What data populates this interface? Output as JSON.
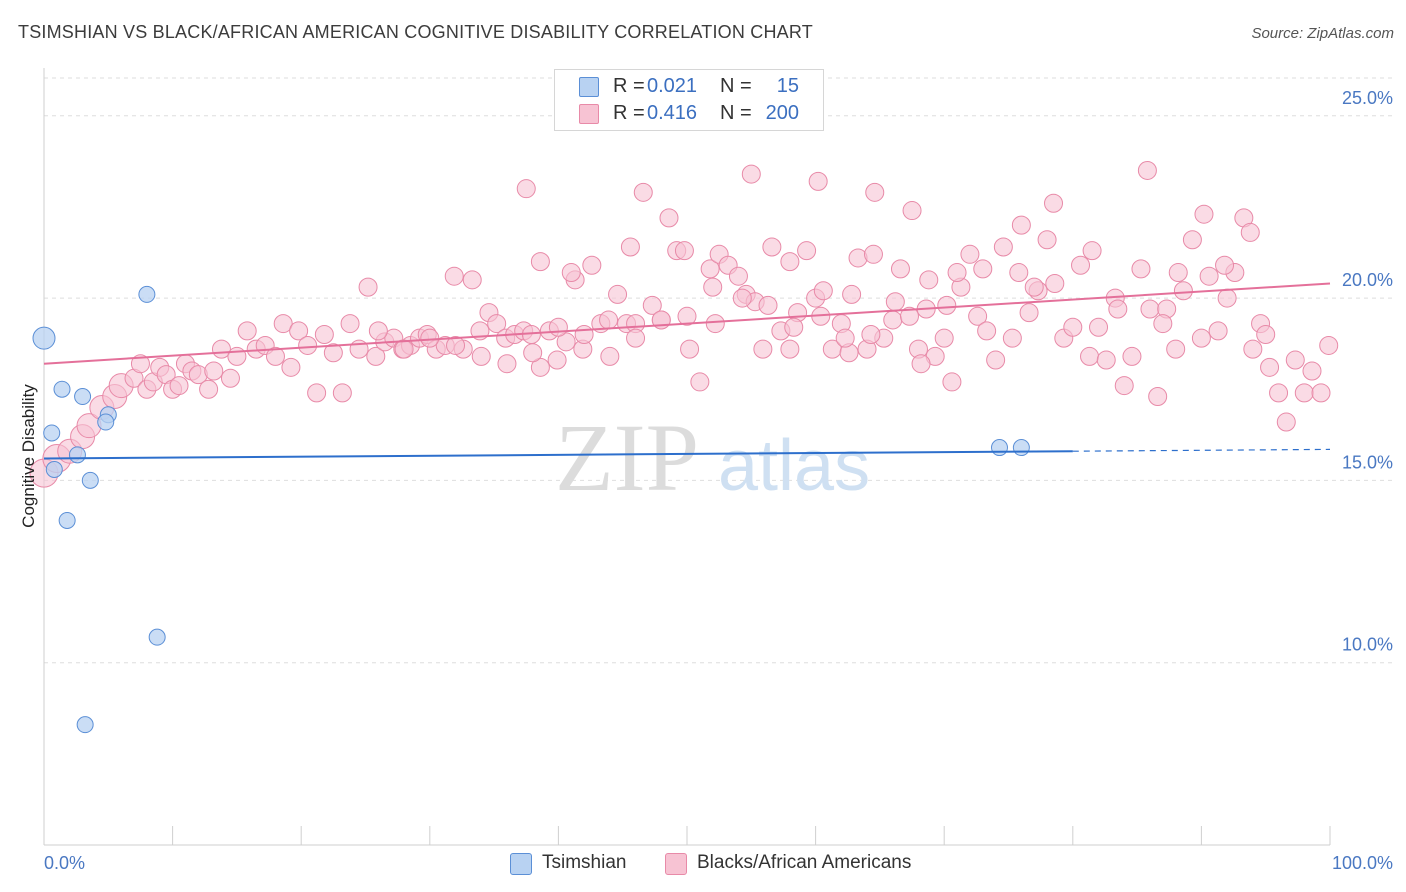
{
  "header": {
    "title": "TSIMSHIAN VS BLACK/AFRICAN AMERICAN COGNITIVE DISABILITY CORRELATION CHART",
    "source": "Source: ZipAtlas.com"
  },
  "legend": {
    "series1": {
      "r_label": "R =",
      "r_value": "0.021",
      "n_label": "N =",
      "n_value": "15"
    },
    "series2": {
      "r_label": "R =",
      "r_value": "0.416",
      "n_label": "N =",
      "n_value": "200"
    }
  },
  "bottom_legend": {
    "series1": "Tsimshian",
    "series2": "Blacks/African Americans"
  },
  "watermark": {
    "zip": "ZIP",
    "atlas": "atlas"
  },
  "colors": {
    "blue_fill": "#b8d2f2",
    "blue_stroke": "#5b8fd6",
    "blue_line": "#2d6fcc",
    "pink_fill": "#f7c3d3",
    "pink_stroke": "#e88aa8",
    "pink_line": "#e4709a",
    "accent_text": "#3b6fc0"
  },
  "chart_data": {
    "type": "scatter",
    "title": "TSIMSHIAN VS BLACK/AFRICAN AMERICAN COGNITIVE DISABILITY CORRELATION CHART",
    "xlabel": "",
    "ylabel": "Cognitive Disability",
    "xlim": [
      0,
      100
    ],
    "ylim": [
      5,
      26.2
    ],
    "x_tick_labels": [
      "0.0%",
      "100.0%"
    ],
    "y_ticks": [
      10,
      15,
      20,
      25
    ],
    "y_tick_labels": [
      "10.0%",
      "15.0%",
      "20.0%",
      "25.0%"
    ],
    "grid": true,
    "legend_position": "top-center",
    "series": [
      {
        "name": "Tsimshian",
        "r": 0.021,
        "n": 15,
        "trend": {
          "x0": 0,
          "y0": 15.6,
          "x1": 80,
          "y1": 15.8,
          "dash_to": 100,
          "dash_y": 15.85
        },
        "points": [
          [
            0.0,
            18.9,
            3
          ],
          [
            0.6,
            16.3,
            1
          ],
          [
            1.4,
            17.5,
            1
          ],
          [
            3.0,
            17.3,
            1
          ],
          [
            5.0,
            16.8,
            1
          ],
          [
            4.8,
            16.6,
            1
          ],
          [
            0.8,
            15.3,
            1
          ],
          [
            2.6,
            15.7,
            1
          ],
          [
            3.6,
            15.0,
            1
          ],
          [
            1.8,
            13.9,
            1
          ],
          [
            8.0,
            20.1,
            1
          ],
          [
            8.8,
            10.7,
            1
          ],
          [
            3.2,
            8.3,
            1
          ],
          [
            74.3,
            15.9,
            1
          ],
          [
            76.0,
            15.9,
            1
          ]
        ]
      },
      {
        "name": "Blacks/African Americans",
        "r": 0.416,
        "n": 200,
        "trend": {
          "x0": 0,
          "y0": 18.2,
          "x1": 100,
          "y1": 20.4
        },
        "points": [
          [
            0.0,
            15.2,
            3
          ],
          [
            1.0,
            15.6,
            3
          ],
          [
            2.0,
            15.8,
            2
          ],
          [
            3.0,
            16.2,
            2
          ],
          [
            3.5,
            16.5,
            2
          ],
          [
            4.5,
            17.0,
            2
          ],
          [
            5.5,
            17.3,
            2
          ],
          [
            6.0,
            17.6,
            2
          ],
          [
            7.0,
            17.8,
            1
          ],
          [
            7.5,
            18.2,
            1
          ],
          [
            8.0,
            17.5,
            1
          ],
          [
            8.5,
            17.7,
            1
          ],
          [
            9.0,
            18.1,
            1
          ],
          [
            9.5,
            17.9,
            1
          ],
          [
            10.0,
            17.5,
            1
          ],
          [
            10.5,
            17.6,
            1
          ],
          [
            11.0,
            18.2,
            1
          ],
          [
            11.5,
            18.0,
            1
          ],
          [
            12.0,
            17.9,
            1
          ],
          [
            12.8,
            17.5,
            1
          ],
          [
            13.2,
            18.0,
            1
          ],
          [
            13.8,
            18.6,
            1
          ],
          [
            14.5,
            17.8,
            1
          ],
          [
            15.0,
            18.4,
            1
          ],
          [
            15.8,
            19.1,
            1
          ],
          [
            16.5,
            18.6,
            1
          ],
          [
            17.2,
            18.7,
            1
          ],
          [
            18.0,
            18.4,
            1
          ],
          [
            18.6,
            19.3,
            1
          ],
          [
            19.2,
            18.1,
            1
          ],
          [
            19.8,
            19.1,
            1
          ],
          [
            20.5,
            18.7,
            1
          ],
          [
            21.2,
            17.4,
            1
          ],
          [
            21.8,
            19.0,
            1
          ],
          [
            22.5,
            18.5,
            1
          ],
          [
            23.2,
            17.4,
            1
          ],
          [
            23.8,
            19.3,
            1
          ],
          [
            24.5,
            18.6,
            1
          ],
          [
            25.2,
            20.3,
            1
          ],
          [
            25.8,
            18.4,
            1
          ],
          [
            26.5,
            18.8,
            1
          ],
          [
            27.2,
            18.9,
            1
          ],
          [
            27.9,
            18.6,
            1
          ],
          [
            28.5,
            18.7,
            1
          ],
          [
            29.2,
            18.9,
            1
          ],
          [
            29.8,
            19.0,
            1
          ],
          [
            30.5,
            18.6,
            1
          ],
          [
            31.2,
            18.7,
            1
          ],
          [
            31.9,
            20.6,
            1
          ],
          [
            32.6,
            18.6,
            1
          ],
          [
            33.3,
            20.5,
            1
          ],
          [
            33.9,
            19.1,
            1
          ],
          [
            34.6,
            19.6,
            1
          ],
          [
            35.2,
            19.3,
            1
          ],
          [
            35.9,
            18.9,
            1
          ],
          [
            36.6,
            19.0,
            1
          ],
          [
            37.3,
            19.1,
            1
          ],
          [
            37.9,
            19.0,
            1
          ],
          [
            38.6,
            18.1,
            1
          ],
          [
            39.3,
            19.1,
            1
          ],
          [
            39.9,
            18.3,
            1
          ],
          [
            40.6,
            18.8,
            1
          ],
          [
            41.3,
            20.5,
            1
          ],
          [
            41.9,
            18.6,
            1
          ],
          [
            42.6,
            20.9,
            1
          ],
          [
            43.3,
            19.3,
            1
          ],
          [
            43.9,
            19.4,
            1
          ],
          [
            44.6,
            20.1,
            1
          ],
          [
            45.3,
            19.3,
            1
          ],
          [
            46.0,
            19.3,
            1
          ],
          [
            46.6,
            22.9,
            1
          ],
          [
            47.3,
            19.8,
            1
          ],
          [
            48.0,
            19.4,
            1
          ],
          [
            48.6,
            22.2,
            1
          ],
          [
            49.2,
            21.3,
            1
          ],
          [
            50.2,
            18.6,
            1
          ],
          [
            51.0,
            17.7,
            1
          ],
          [
            51.8,
            20.8,
            1
          ],
          [
            52.5,
            21.2,
            1
          ],
          [
            53.2,
            20.9,
            1
          ],
          [
            54.0,
            20.6,
            1
          ],
          [
            54.6,
            20.1,
            1
          ],
          [
            55.3,
            19.9,
            1
          ],
          [
            55.9,
            18.6,
            1
          ],
          [
            56.6,
            21.4,
            1
          ],
          [
            57.3,
            19.1,
            1
          ],
          [
            58.0,
            18.6,
            1
          ],
          [
            58.6,
            19.6,
            1
          ],
          [
            59.3,
            21.3,
            1
          ],
          [
            60.0,
            20.0,
            1
          ],
          [
            60.6,
            20.2,
            1
          ],
          [
            61.3,
            18.6,
            1
          ],
          [
            62.0,
            19.3,
            1
          ],
          [
            62.6,
            18.5,
            1
          ],
          [
            63.3,
            21.1,
            1
          ],
          [
            64.0,
            18.6,
            1
          ],
          [
            64.6,
            22.9,
            1
          ],
          [
            65.3,
            18.9,
            1
          ],
          [
            66.0,
            19.4,
            1
          ],
          [
            66.6,
            20.8,
            1
          ],
          [
            67.3,
            19.5,
            1
          ],
          [
            68.0,
            18.6,
            1
          ],
          [
            68.6,
            19.7,
            1
          ],
          [
            69.3,
            18.4,
            1
          ],
          [
            70.0,
            18.9,
            1
          ],
          [
            70.6,
            17.7,
            1
          ],
          [
            71.3,
            20.3,
            1
          ],
          [
            72.0,
            21.2,
            1
          ],
          [
            72.6,
            19.5,
            1
          ],
          [
            73.3,
            19.1,
            1
          ],
          [
            74.0,
            18.3,
            1
          ],
          [
            74.6,
            21.4,
            1
          ],
          [
            75.3,
            18.9,
            1
          ],
          [
            76.0,
            22.0,
            1
          ],
          [
            76.6,
            19.6,
            1
          ],
          [
            77.3,
            20.2,
            1
          ],
          [
            78.0,
            21.6,
            1
          ],
          [
            78.6,
            20.4,
            1
          ],
          [
            79.3,
            18.9,
            1
          ],
          [
            80.0,
            19.2,
            1
          ],
          [
            80.6,
            20.9,
            1
          ],
          [
            81.3,
            18.4,
            1
          ],
          [
            82.0,
            19.2,
            1
          ],
          [
            82.6,
            18.3,
            1
          ],
          [
            83.3,
            20.0,
            1
          ],
          [
            84.0,
            17.6,
            1
          ],
          [
            84.6,
            18.4,
            1
          ],
          [
            85.3,
            20.8,
            1
          ],
          [
            86.0,
            19.7,
            1
          ],
          [
            86.6,
            17.3,
            1
          ],
          [
            87.3,
            19.7,
            1
          ],
          [
            88.0,
            18.6,
            1
          ],
          [
            88.6,
            20.2,
            1
          ],
          [
            89.3,
            21.6,
            1
          ],
          [
            90.0,
            18.9,
            1
          ],
          [
            90.6,
            20.6,
            1
          ],
          [
            91.3,
            19.1,
            1
          ],
          [
            92.0,
            20.0,
            1
          ],
          [
            92.6,
            20.7,
            1
          ],
          [
            93.3,
            22.2,
            1
          ],
          [
            94.0,
            18.6,
            1
          ],
          [
            94.6,
            19.3,
            1
          ],
          [
            95.3,
            18.1,
            1
          ],
          [
            96.0,
            17.4,
            1
          ],
          [
            96.6,
            16.6,
            1
          ],
          [
            97.3,
            18.3,
            1
          ],
          [
            98.0,
            17.4,
            1
          ],
          [
            98.6,
            18.0,
            1
          ],
          [
            99.3,
            17.4,
            1
          ],
          [
            99.9,
            18.7,
            1
          ],
          [
            37.5,
            23.0,
            1
          ],
          [
            55.0,
            23.4,
            1
          ],
          [
            60.2,
            23.2,
            1
          ],
          [
            67.5,
            22.4,
            1
          ],
          [
            78.5,
            22.6,
            1
          ],
          [
            85.8,
            23.5,
            1
          ],
          [
            90.2,
            22.3,
            1
          ],
          [
            93.8,
            21.8,
            1
          ],
          [
            45.6,
            21.4,
            1
          ],
          [
            49.8,
            21.3,
            1
          ],
          [
            58.0,
            21.0,
            1
          ],
          [
            64.5,
            21.2,
            1
          ],
          [
            71.0,
            20.7,
            1
          ],
          [
            75.8,
            20.7,
            1
          ],
          [
            81.5,
            21.3,
            1
          ],
          [
            88.2,
            20.7,
            1
          ],
          [
            91.8,
            20.9,
            1
          ],
          [
            38.6,
            21.0,
            1
          ],
          [
            41.0,
            20.7,
            1
          ],
          [
            52.0,
            20.3,
            1
          ],
          [
            62.8,
            20.1,
            1
          ],
          [
            68.8,
            20.5,
            1
          ],
          [
            73.0,
            20.8,
            1
          ],
          [
            77.0,
            20.3,
            1
          ],
          [
            83.5,
            19.7,
            1
          ],
          [
            87.0,
            19.3,
            1
          ],
          [
            95.0,
            19.0,
            1
          ],
          [
            26.0,
            19.1,
            1
          ],
          [
            28.0,
            18.6,
            1
          ],
          [
            30.0,
            18.9,
            1
          ],
          [
            32.0,
            18.7,
            1
          ],
          [
            34.0,
            18.4,
            1
          ],
          [
            36.0,
            18.2,
            1
          ],
          [
            38.0,
            18.5,
            1
          ],
          [
            40.0,
            19.2,
            1
          ],
          [
            42.0,
            19.0,
            1
          ],
          [
            44.0,
            18.4,
            1
          ],
          [
            46.0,
            18.9,
            1
          ],
          [
            48.0,
            19.4,
            1
          ],
          [
            50.0,
            19.5,
            1
          ],
          [
            52.2,
            19.3,
            1
          ],
          [
            54.3,
            20.0,
            1
          ],
          [
            56.3,
            19.8,
            1
          ],
          [
            58.3,
            19.2,
            1
          ],
          [
            60.4,
            19.5,
            1
          ],
          [
            62.3,
            18.9,
            1
          ],
          [
            64.3,
            19.0,
            1
          ],
          [
            66.2,
            19.9,
            1
          ],
          [
            68.2,
            18.2,
            1
          ],
          [
            70.2,
            19.8,
            1
          ]
        ]
      }
    ]
  }
}
